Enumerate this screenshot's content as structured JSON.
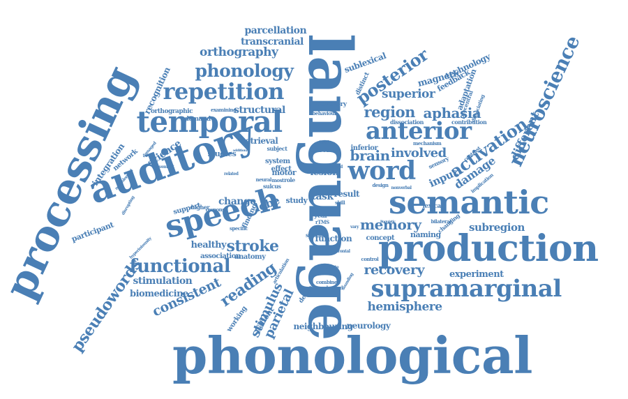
{
  "color": "#4a7fb5",
  "words": [
    {
      "text": "phonological"
    },
    {
      "text": "language"
    },
    {
      "text": "processing"
    },
    {
      "text": "auditory"
    },
    {
      "text": "speech"
    },
    {
      "text": "production"
    },
    {
      "text": "semantic"
    },
    {
      "text": "temporal"
    },
    {
      "text": "supramarginal"
    },
    {
      "text": "word"
    },
    {
      "text": "anterior"
    },
    {
      "text": "repetition"
    },
    {
      "text": "neuroscience"
    },
    {
      "text": "phonology"
    },
    {
      "text": "functional"
    },
    {
      "text": "pseudowords"
    },
    {
      "text": "posterior"
    },
    {
      "text": "activation"
    },
    {
      "text": "aphasia"
    },
    {
      "text": "region"
    },
    {
      "text": "memory"
    },
    {
      "text": "reading"
    },
    {
      "text": "stroke"
    },
    {
      "text": "recovery"
    },
    {
      "text": "hemisphere"
    },
    {
      "text": "superior"
    },
    {
      "text": "brain"
    },
    {
      "text": "involved"
    },
    {
      "text": "stimulus"
    },
    {
      "text": "parietal"
    },
    {
      "text": "consistent"
    },
    {
      "text": "orthography"
    },
    {
      "text": "parcellation"
    },
    {
      "text": "transcranial"
    },
    {
      "text": "damage"
    },
    {
      "text": "different"
    },
    {
      "text": "subregion"
    },
    {
      "text": "experiment"
    },
    {
      "text": "stimulation"
    },
    {
      "text": "biomedicine"
    },
    {
      "text": "structural"
    },
    {
      "text": "lobe"
    },
    {
      "text": "science"
    },
    {
      "text": "healthy"
    },
    {
      "text": "change"
    },
    {
      "text": "recognition"
    },
    {
      "text": "integration"
    },
    {
      "text": "network"
    },
    {
      "text": "participant"
    },
    {
      "text": "retrieval"
    },
    {
      "text": "input"
    },
    {
      "text": "magnetic"
    },
    {
      "text": "technology"
    },
    {
      "text": "sublexical"
    },
    {
      "text": "feedback"
    },
    {
      "text": "adaptation"
    },
    {
      "text": "neurology"
    },
    {
      "text": "neighbouring"
    },
    {
      "text": "patient"
    },
    {
      "text": "working"
    },
    {
      "text": "naming"
    },
    {
      "text": "concept"
    },
    {
      "text": "function"
    },
    {
      "text": "association"
    },
    {
      "text": "anatomy"
    },
    {
      "text": "support"
    },
    {
      "text": "task"
    },
    {
      "text": "result"
    },
    {
      "text": "study"
    },
    {
      "text": "lesion"
    },
    {
      "text": "chronic"
    },
    {
      "text": "inferior"
    },
    {
      "text": "motor"
    },
    {
      "text": "system"
    },
    {
      "text": "effect"
    },
    {
      "text": "studies"
    },
    {
      "text": "orthographic"
    },
    {
      "text": "demand"
    },
    {
      "text": "articulatory"
    },
    {
      "text": "dissociation"
    },
    {
      "text": "contribution"
    },
    {
      "text": "behaviour"
    },
    {
      "text": "precentral"
    },
    {
      "text": "distinct"
    },
    {
      "text": "examining"
    },
    {
      "text": "subject"
    },
    {
      "text": "sulcus"
    },
    {
      "text": "decline"
    },
    {
      "text": "combined"
    },
    {
      "text": "pseudoword"
    },
    {
      "text": "year"
    },
    {
      "text": "special"
    },
    {
      "text": "lexical"
    },
    {
      "text": "sensory"
    },
    {
      "text": "implication"
    },
    {
      "text": "bilateral"
    },
    {
      "text": "higher"
    },
    {
      "text": "response"
    },
    {
      "text": "finding"
    },
    {
      "text": "role"
    },
    {
      "text": "most"
    },
    {
      "text": "neural"
    },
    {
      "text": "skill"
    },
    {
      "text": "type"
    },
    {
      "text": "sound"
    },
    {
      "text": "visual"
    },
    {
      "text": "changing"
    },
    {
      "text": "mechanism"
    },
    {
      "text": "dissociating"
    },
    {
      "text": "contrast"
    },
    {
      "text": "control"
    },
    {
      "text": "design"
    },
    {
      "text": "nonverbal"
    },
    {
      "text": "related"
    },
    {
      "text": "specific"
    },
    {
      "text": "rTMS"
    },
    {
      "text": "damaged"
    },
    {
      "text": "movement"
    },
    {
      "text": "additional"
    },
    {
      "text": "hyperintensity"
    },
    {
      "text": "articulation"
    },
    {
      "text": "contribute"
    },
    {
      "text": "neurological"
    },
    {
      "text": "disrupting"
    },
    {
      "text": "sounding"
    },
    {
      "text": "linguistic"
    },
    {
      "text": "vary"
    },
    {
      "text": "frontal"
    }
  ]
}
